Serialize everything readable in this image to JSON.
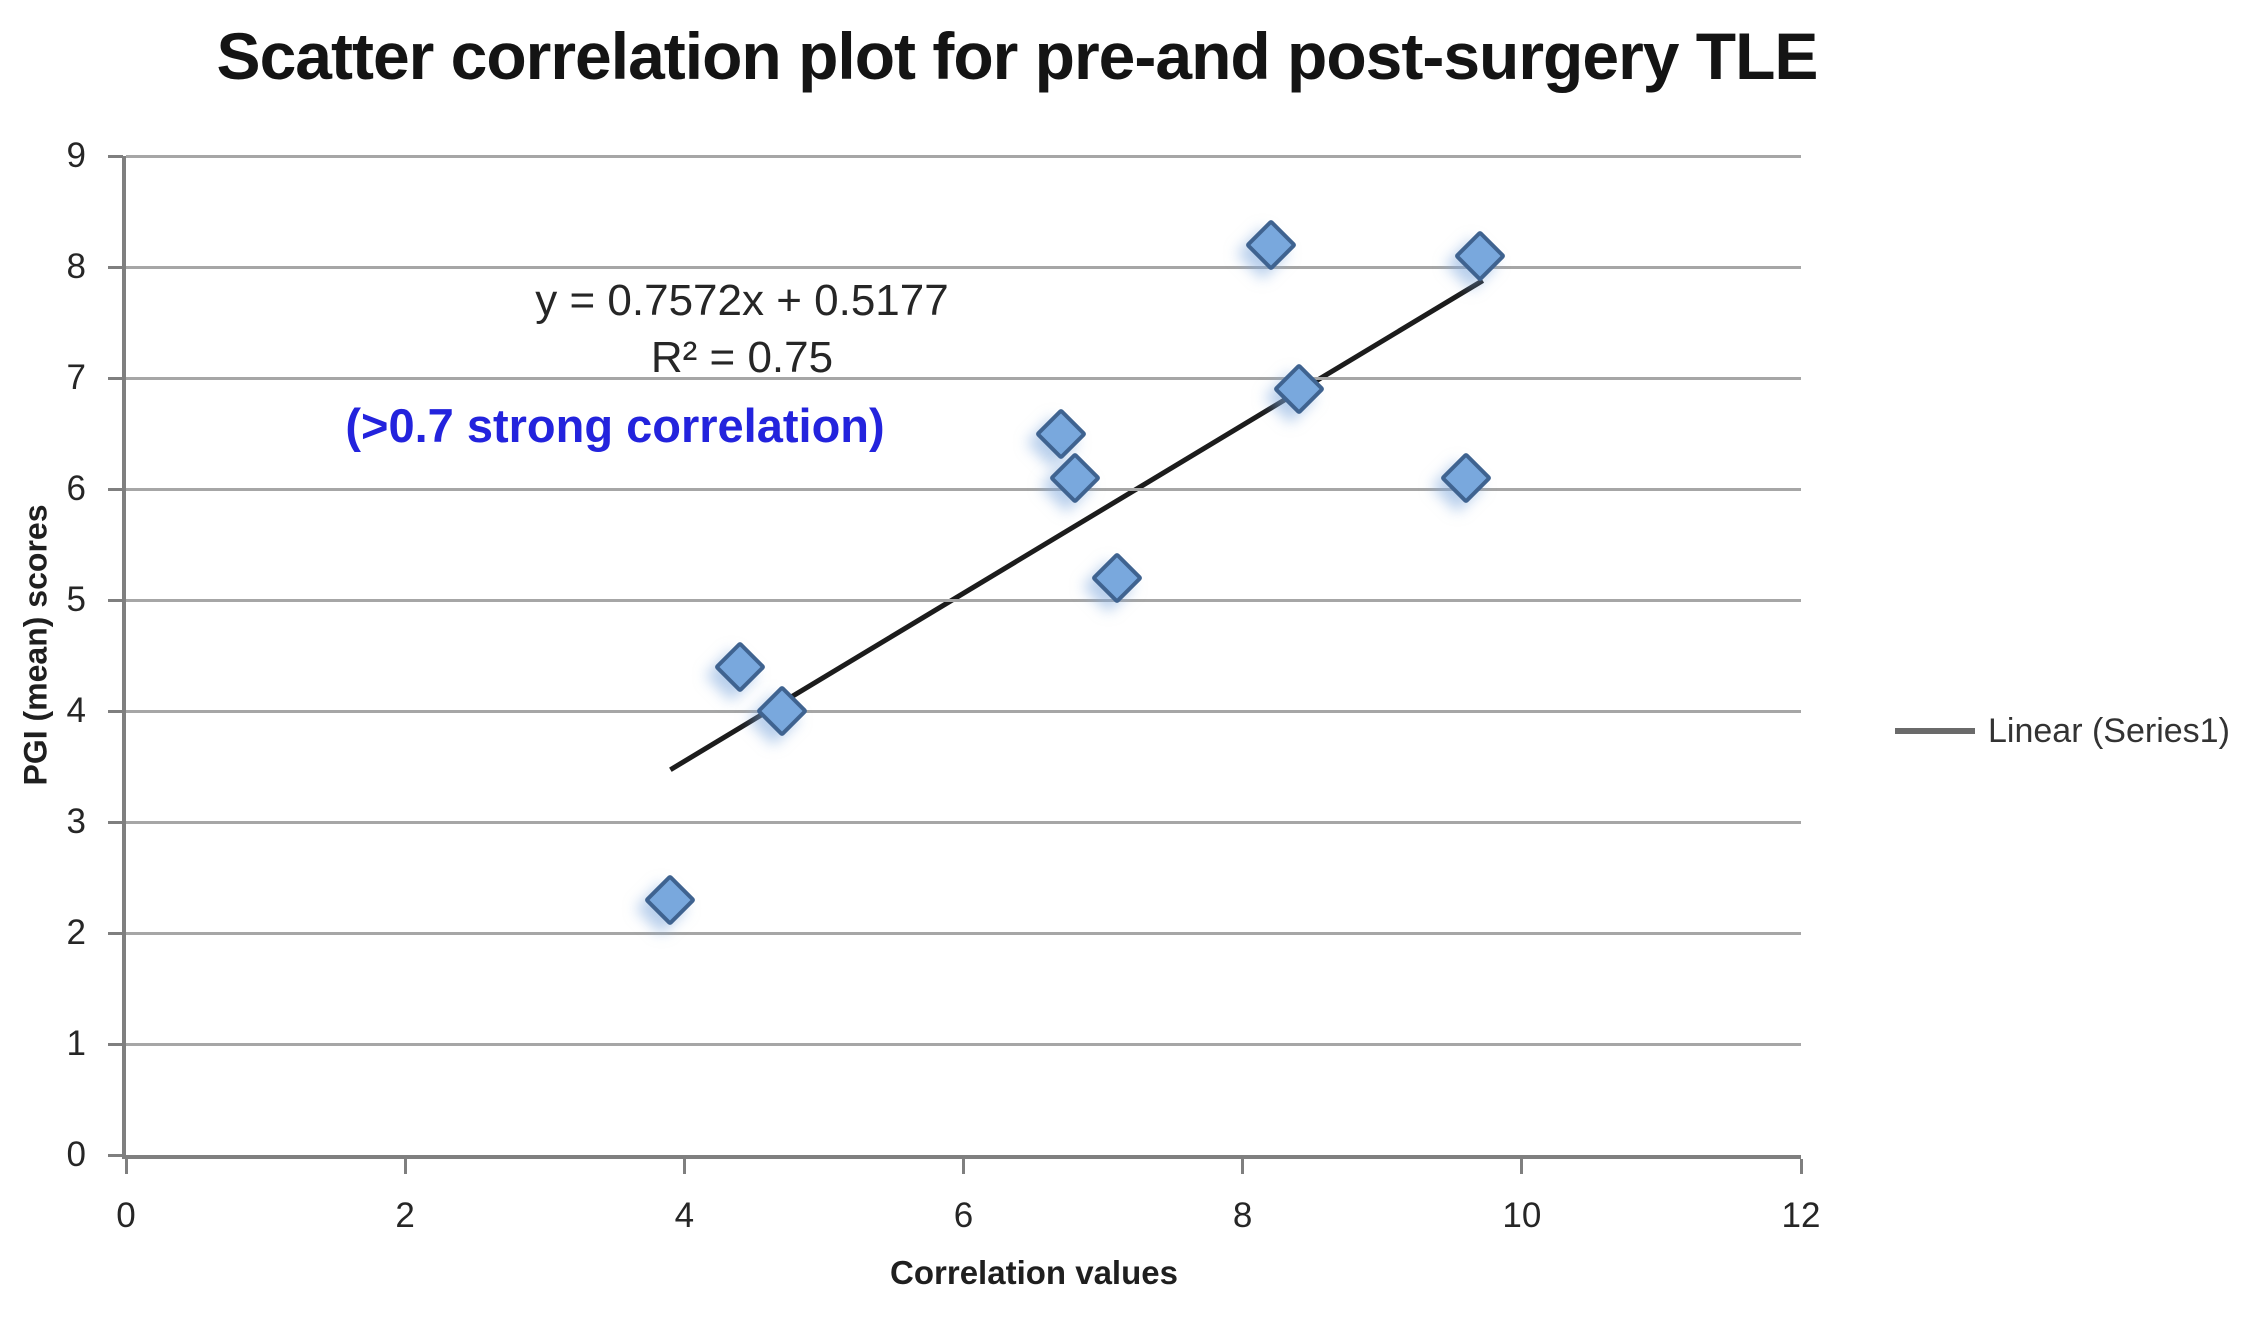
{
  "chart_data": {
    "type": "scatter",
    "title": "Scatter correlation plot for pre-and post-surgery TLE",
    "xlabel": "Correlation values",
    "ylabel": "PGI (mean) scores",
    "xlim": [
      0,
      12
    ],
    "ylim": [
      0,
      9
    ],
    "x_ticks": [
      0,
      2,
      4,
      6,
      8,
      10,
      12
    ],
    "y_ticks": [
      0,
      1,
      2,
      3,
      4,
      5,
      6,
      7,
      8,
      9
    ],
    "grid": "horizontal-only",
    "series": [
      {
        "name": "Series1",
        "marker": "diamond",
        "points": [
          [
            3.9,
            2.3
          ],
          [
            4.4,
            4.4
          ],
          [
            4.7,
            4.0
          ],
          [
            6.7,
            6.5
          ],
          [
            6.8,
            6.1
          ],
          [
            7.1,
            5.2
          ],
          [
            8.2,
            8.2
          ],
          [
            8.4,
            6.9
          ],
          [
            9.6,
            6.1
          ],
          [
            9.7,
            8.1
          ]
        ]
      }
    ],
    "trendline": {
      "type": "linear",
      "slope": 0.7572,
      "intercept": 0.5177,
      "x_start": 3.9,
      "x_end": 9.72
    },
    "annotations": {
      "equation": "y = 0.7572x + 0.5177",
      "r_squared": "R² = 0.75",
      "note": "(>0.7 strong correlation)"
    },
    "legend": {
      "label": "Linear (Series1)",
      "position": "right-middle"
    },
    "colors": {
      "marker_fill": "#79a8dd",
      "marker_stroke": "#3f6390",
      "trendline": "#1c1c1c",
      "gridline": "#a6a6a6",
      "axis": "#7f7f7f",
      "note_blue": "#2323dd",
      "text": "#262626"
    }
  }
}
